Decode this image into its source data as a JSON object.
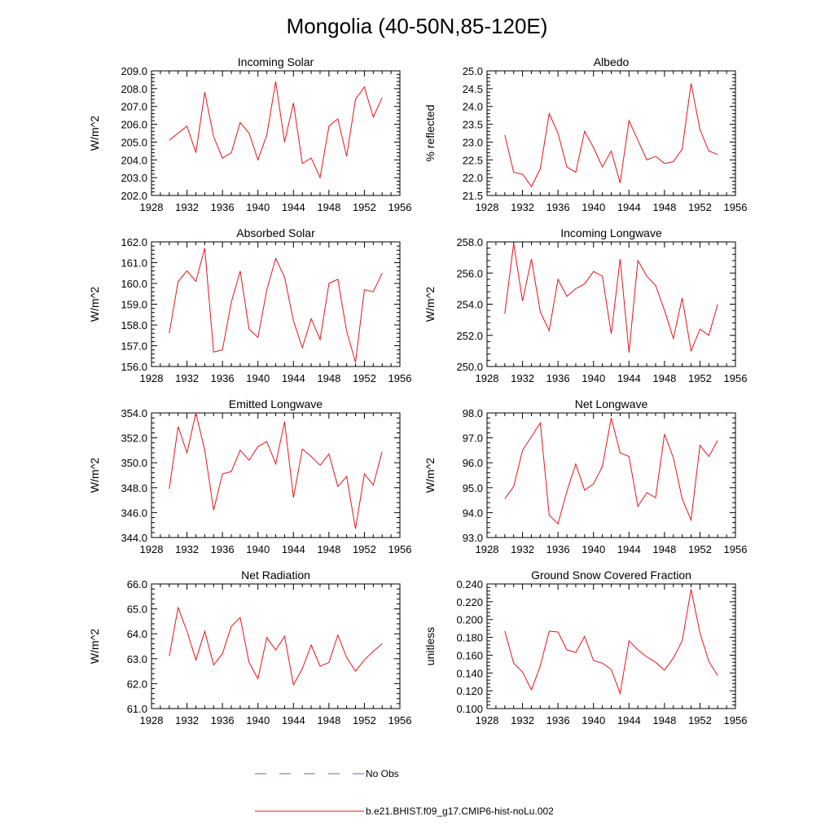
{
  "title": "Mongolia (40-50N,85-120E)",
  "legend": [
    {
      "label": "No Obs",
      "color": "#6a6aa8",
      "style": "dashed"
    },
    {
      "label": "b.e21.BHIST.f09_g17.CMIP6-hist-noLu.002",
      "color": "#e8141c",
      "style": "solid"
    }
  ],
  "chart_data": [
    {
      "type": "line",
      "title": "Incoming Solar",
      "ylabel": "W/m^2",
      "xlim": [
        1928,
        1956
      ],
      "ylim": [
        202.0,
        209.0
      ],
      "xticks": [
        1928,
        1932,
        1936,
        1940,
        1944,
        1948,
        1952,
        1956
      ],
      "xtick_labels": [
        "1928",
        "1932",
        "1936",
        "1940",
        "1944",
        "1948",
        "1952",
        "1956"
      ],
      "yticks": [
        202,
        203,
        204,
        205,
        206,
        207,
        208,
        209
      ],
      "ytick_labels": [
        "202.0",
        "203.0",
        "204.0",
        "205.0",
        "206.0",
        "207.0",
        "208.0",
        "209.0"
      ],
      "series": [
        {
          "color": "#e8141c",
          "x": [
            1930,
            1931,
            1932,
            1933,
            1934,
            1935,
            1936,
            1937,
            1938,
            1939,
            1940,
            1941,
            1942,
            1943,
            1944,
            1945,
            1946,
            1947,
            1948,
            1949,
            1950,
            1951,
            1952,
            1953,
            1954
          ],
          "y": [
            205.1,
            205.5,
            205.9,
            204.4,
            207.8,
            205.3,
            204.1,
            204.4,
            206.1,
            205.5,
            204.0,
            205.4,
            208.4,
            205.0,
            207.2,
            203.8,
            204.1,
            203.0,
            205.9,
            206.3,
            204.2,
            207.4,
            208.1,
            206.4,
            207.5
          ]
        }
      ]
    },
    {
      "type": "line",
      "title": "Albedo",
      "ylabel": "% reflected",
      "xlim": [
        1928,
        1956
      ],
      "ylim": [
        21.5,
        25.0
      ],
      "xticks": [
        1928,
        1932,
        1936,
        1940,
        1944,
        1948,
        1952,
        1956
      ],
      "xtick_labels": [
        "1928",
        "1932",
        "1936",
        "1940",
        "1944",
        "1948",
        "1952",
        "1956"
      ],
      "yticks": [
        21.5,
        22.0,
        22.5,
        23.0,
        23.5,
        24.0,
        24.5,
        25.0
      ],
      "ytick_labels": [
        "21.5",
        "22.0",
        "22.5",
        "23.0",
        "23.5",
        "24.0",
        "24.5",
        "25.0"
      ],
      "series": [
        {
          "color": "#e8141c",
          "x": [
            1930,
            1931,
            1932,
            1933,
            1934,
            1935,
            1936,
            1937,
            1938,
            1939,
            1940,
            1941,
            1942,
            1943,
            1944,
            1945,
            1946,
            1947,
            1948,
            1949,
            1950,
            1951,
            1952,
            1953,
            1954
          ],
          "y": [
            23.2,
            22.15,
            22.1,
            21.75,
            22.25,
            23.8,
            23.25,
            22.3,
            22.15,
            23.3,
            22.85,
            22.3,
            22.75,
            21.85,
            23.6,
            23.05,
            22.5,
            22.6,
            22.4,
            22.45,
            22.8,
            24.65,
            23.35,
            22.75,
            22.65
          ]
        }
      ]
    },
    {
      "type": "line",
      "title": "Absorbed Solar",
      "ylabel": "W/m^2",
      "xlim": [
        1928,
        1956
      ],
      "ylim": [
        156.0,
        162.0
      ],
      "xticks": [
        1928,
        1932,
        1936,
        1940,
        1944,
        1948,
        1952,
        1956
      ],
      "xtick_labels": [
        "1928",
        "1932",
        "1936",
        "1940",
        "1944",
        "1948",
        "1952",
        "1956"
      ],
      "yticks": [
        156,
        157,
        158,
        159,
        160,
        161,
        162
      ],
      "ytick_labels": [
        "156.0",
        "157.0",
        "158.0",
        "159.0",
        "160.0",
        "161.0",
        "162.0"
      ],
      "series": [
        {
          "color": "#e8141c",
          "x": [
            1930,
            1931,
            1932,
            1933,
            1934,
            1935,
            1936,
            1937,
            1938,
            1939,
            1940,
            1941,
            1942,
            1943,
            1944,
            1945,
            1946,
            1947,
            1948,
            1949,
            1950,
            1951,
            1952,
            1953,
            1954
          ],
          "y": [
            157.6,
            160.1,
            160.6,
            160.1,
            161.7,
            156.7,
            156.8,
            159.1,
            160.6,
            157.8,
            157.4,
            159.7,
            161.2,
            160.3,
            158.2,
            156.9,
            158.3,
            157.3,
            160.0,
            160.2,
            157.7,
            156.2,
            159.7,
            159.6,
            160.5
          ]
        }
      ]
    },
    {
      "type": "line",
      "title": "Incoming Longwave",
      "ylabel": "W/m^2",
      "xlim": [
        1928,
        1956
      ],
      "ylim": [
        250.0,
        258.0
      ],
      "xticks": [
        1928,
        1932,
        1936,
        1940,
        1944,
        1948,
        1952,
        1956
      ],
      "xtick_labels": [
        "1928",
        "1932",
        "1936",
        "1940",
        "1944",
        "1948",
        "1952",
        "1956"
      ],
      "yticks": [
        250,
        252,
        254,
        256,
        258
      ],
      "ytick_labels": [
        "250.0",
        "252.0",
        "254.0",
        "256.0",
        "258.0"
      ],
      "series": [
        {
          "color": "#e8141c",
          "x": [
            1930,
            1931,
            1932,
            1933,
            1934,
            1935,
            1936,
            1937,
            1938,
            1939,
            1940,
            1941,
            1942,
            1943,
            1944,
            1945,
            1946,
            1947,
            1948,
            1949,
            1950,
            1951,
            1952,
            1953,
            1954
          ],
          "y": [
            253.4,
            257.9,
            254.2,
            256.9,
            253.5,
            252.3,
            255.6,
            254.5,
            255.0,
            255.3,
            256.1,
            255.8,
            252.1,
            256.9,
            250.9,
            256.8,
            255.8,
            255.2,
            253.6,
            251.8,
            254.4,
            251.0,
            252.4,
            252.0,
            254.0
          ]
        }
      ]
    },
    {
      "type": "line",
      "title": "Emitted Longwave",
      "ylabel": "W/m^2",
      "xlim": [
        1928,
        1956
      ],
      "ylim": [
        344.0,
        354.0
      ],
      "xticks": [
        1928,
        1932,
        1936,
        1940,
        1944,
        1948,
        1952,
        1956
      ],
      "xtick_labels": [
        "1928",
        "1932",
        "1936",
        "1940",
        "1944",
        "1948",
        "1952",
        "1956"
      ],
      "yticks": [
        344,
        346,
        348,
        350,
        352,
        354
      ],
      "ytick_labels": [
        "344.0",
        "346.0",
        "348.0",
        "350.0",
        "352.0",
        "354.0"
      ],
      "series": [
        {
          "color": "#e8141c",
          "x": [
            1930,
            1931,
            1932,
            1933,
            1934,
            1935,
            1936,
            1937,
            1938,
            1939,
            1940,
            1941,
            1942,
            1943,
            1944,
            1945,
            1946,
            1947,
            1948,
            1949,
            1950,
            1951,
            1952,
            1953,
            1954
          ],
          "y": [
            347.9,
            352.9,
            350.8,
            354.0,
            351.0,
            346.2,
            349.1,
            349.3,
            351.0,
            350.2,
            351.3,
            351.7,
            349.9,
            353.3,
            347.2,
            351.1,
            350.5,
            349.8,
            350.7,
            348.1,
            348.9,
            344.7,
            349.1,
            348.2,
            350.9
          ]
        }
      ]
    },
    {
      "type": "line",
      "title": "Net Longwave",
      "ylabel": "W/m^2",
      "xlim": [
        1928,
        1956
      ],
      "ylim": [
        93.0,
        98.0
      ],
      "xticks": [
        1928,
        1932,
        1936,
        1940,
        1944,
        1948,
        1952,
        1956
      ],
      "xtick_labels": [
        "1928",
        "1932",
        "1936",
        "1940",
        "1944",
        "1948",
        "1952",
        "1956"
      ],
      "yticks": [
        93,
        94,
        95,
        96,
        97,
        98
      ],
      "ytick_labels": [
        "93.0",
        "94.0",
        "95.0",
        "96.0",
        "97.0",
        "98.0"
      ],
      "series": [
        {
          "color": "#e8141c",
          "x": [
            1930,
            1931,
            1932,
            1933,
            1934,
            1935,
            1936,
            1937,
            1938,
            1939,
            1940,
            1941,
            1942,
            1943,
            1944,
            1945,
            1946,
            1947,
            1948,
            1949,
            1950,
            1951,
            1952,
            1953,
            1954
          ],
          "y": [
            94.55,
            95.05,
            96.5,
            97.05,
            97.6,
            93.9,
            93.55,
            94.85,
            95.95,
            94.9,
            95.15,
            95.85,
            97.8,
            96.4,
            96.25,
            94.25,
            94.8,
            94.6,
            97.15,
            96.2,
            94.55,
            93.7,
            96.7,
            96.25,
            96.9
          ]
        }
      ]
    },
    {
      "type": "line",
      "title": "Net Radiation",
      "ylabel": "W/m^2",
      "xlim": [
        1928,
        1956
      ],
      "ylim": [
        61.0,
        66.0
      ],
      "xticks": [
        1928,
        1932,
        1936,
        1940,
        1944,
        1948,
        1952,
        1956
      ],
      "xtick_labels": [
        "1928",
        "1932",
        "1936",
        "1940",
        "1944",
        "1948",
        "1952",
        "1956"
      ],
      "yticks": [
        61,
        62,
        63,
        64,
        65,
        66
      ],
      "ytick_labels": [
        "61.0",
        "62.0",
        "63.0",
        "64.0",
        "65.0",
        "66.0"
      ],
      "series": [
        {
          "color": "#e8141c",
          "x": [
            1930,
            1931,
            1932,
            1933,
            1934,
            1935,
            1936,
            1937,
            1938,
            1939,
            1940,
            1941,
            1942,
            1943,
            1944,
            1945,
            1946,
            1947,
            1948,
            1949,
            1950,
            1951,
            1952,
            1953,
            1954
          ],
          "y": [
            63.1,
            65.05,
            64.1,
            62.95,
            64.1,
            62.75,
            63.2,
            64.3,
            64.65,
            62.85,
            62.2,
            63.85,
            63.35,
            63.9,
            61.95,
            62.6,
            63.55,
            62.7,
            62.85,
            63.95,
            63.05,
            62.5,
            62.95,
            63.3,
            63.6
          ]
        }
      ]
    },
    {
      "type": "line",
      "title": "Ground Snow Covered Fraction",
      "ylabel": "unitless",
      "xlim": [
        1928,
        1956
      ],
      "ylim": [
        0.1,
        0.24
      ],
      "xticks": [
        1928,
        1932,
        1936,
        1940,
        1944,
        1948,
        1952,
        1956
      ],
      "xtick_labels": [
        "1928",
        "1932",
        "1936",
        "1940",
        "1944",
        "1948",
        "1952",
        "1956"
      ],
      "yticks": [
        0.1,
        0.12,
        0.14,
        0.16,
        0.18,
        0.2,
        0.22,
        0.24
      ],
      "ytick_labels": [
        "0.100",
        "0.120",
        "0.140",
        "0.160",
        "0.180",
        "0.200",
        "0.220",
        "0.240"
      ],
      "series": [
        {
          "color": "#e8141c",
          "x": [
            1930,
            1931,
            1932,
            1933,
            1934,
            1935,
            1936,
            1937,
            1938,
            1939,
            1940,
            1941,
            1942,
            1943,
            1944,
            1945,
            1946,
            1947,
            1948,
            1949,
            1950,
            1951,
            1952,
            1953,
            1954
          ],
          "y": [
            0.187,
            0.151,
            0.141,
            0.121,
            0.148,
            0.187,
            0.186,
            0.166,
            0.163,
            0.181,
            0.154,
            0.151,
            0.144,
            0.117,
            0.176,
            0.166,
            0.158,
            0.152,
            0.143,
            0.157,
            0.176,
            0.234,
            0.185,
            0.153,
            0.137
          ]
        }
      ]
    }
  ]
}
